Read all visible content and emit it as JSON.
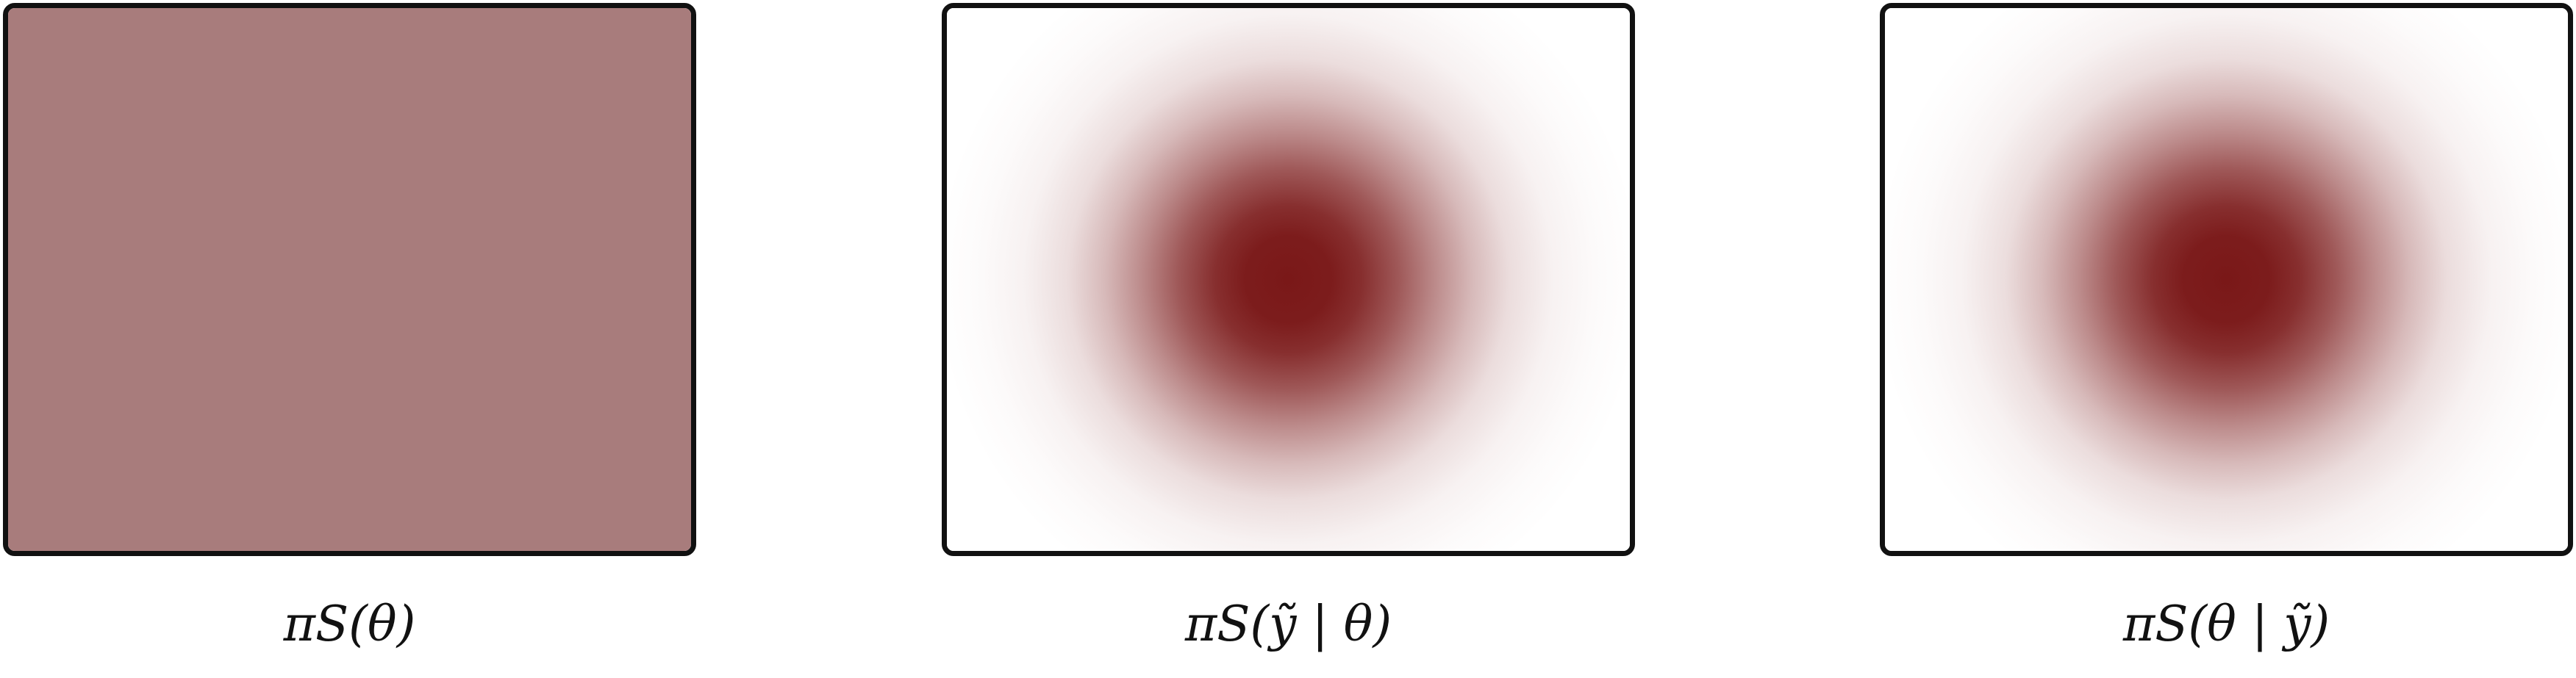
{
  "colors": {
    "flat_fill": "#a87c7c",
    "density_peak": "#7a1818",
    "border": "#111111",
    "background": "#ffffff"
  },
  "panels": [
    {
      "caption": "πS(θ)"
    },
    {
      "caption": "πS(ỹ | θ)"
    },
    {
      "caption": "πS(θ | ỹ)"
    }
  ]
}
